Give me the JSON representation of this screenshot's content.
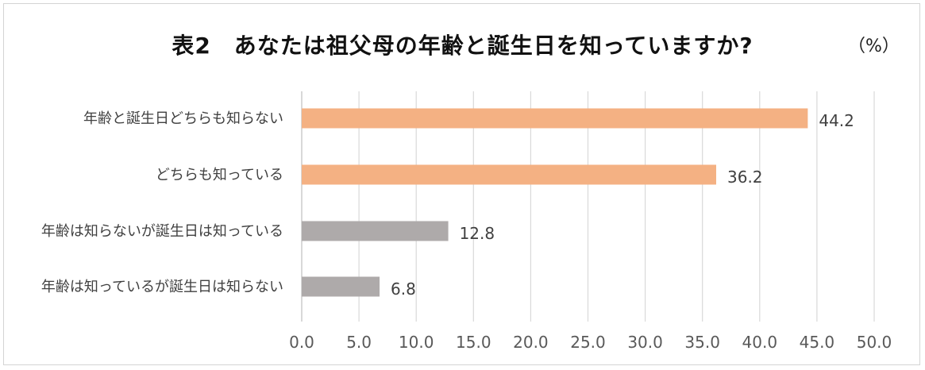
{
  "chart_data": {
    "type": "bar",
    "orientation": "horizontal",
    "title": "表2　あなたは祖父母の年齢と誕生日を知っていますか?",
    "unit": "（%）",
    "categories": [
      "年齢と誕生日どちらも知らない",
      "どちらも知っている",
      "年齢は知らないが誕生日は知っている",
      "年齢は知っているが誕生日は知らない"
    ],
    "values": [
      44.2,
      36.2,
      12.8,
      6.8
    ],
    "value_labels": [
      "44.2",
      "36.2",
      "12.8",
      "6.8"
    ],
    "colors": [
      "#f4b183",
      "#f4b183",
      "#aeaaaa",
      "#aeaaaa"
    ],
    "xlim": [
      0,
      50
    ],
    "x_ticks": [
      "0.0",
      "5.0",
      "10.0",
      "15.0",
      "20.0",
      "25.0",
      "30.0",
      "35.0",
      "40.0",
      "45.0",
      "50.0"
    ],
    "grid": true,
    "legend": "none"
  },
  "colors": {
    "gridline": "#d9d9d9",
    "axis": "#bfbfbf"
  }
}
